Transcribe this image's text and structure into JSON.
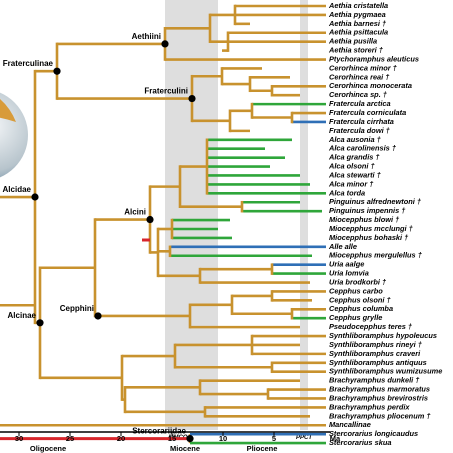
{
  "taxa": [
    "Aethia cristatella",
    "Aethia pygmaea",
    "Aethia barnesi †",
    "Aethia psittacula",
    "Aethia pusilla",
    "Aethia storeri †",
    "Ptychoramphus aleuticus",
    "Cerorhinca minor †",
    "Cerorhinca reai †",
    "Cerorhinca monocerata",
    "Cerorhinca sp. †",
    "Fratercula arctica",
    "Fratercula corniculata",
    "Fratercula cirrhata",
    "Fratercula dowi †",
    "Alca ausonia †",
    "Alca carolinensis †",
    "Alca grandis †",
    "Alca olsoni †",
    "Alca stewarti †",
    "Alca minor †",
    "Alca torda",
    "Pinguinus alfrednewtoni †",
    "Pinguinus impennis †",
    "Miocepphus blowi †",
    "Miocepphus mcclungi †",
    "Miocepphus bohaski †",
    "Alle alle",
    "Miocepphus mergulellus †",
    "Uria aalge",
    "Uria lomvia",
    "Uria brodkorbi †",
    "Cepphus carbo",
    "Cepphus olsoni †",
    "Cepphus columba",
    "Cepphus grylle",
    "Pseudocepphus teres †",
    "Synthliboramphus hypoleucus",
    "Synthliboramphus rineyi †",
    "Synthliboramphus craveri",
    "Synthliboramphus antiquus",
    "Synthliboramphus wumizusume",
    "Brachyramphus dunkeli †",
    "Brachyramphus marmoratus",
    "Brachyramphus brevirostris",
    "Brachyramphus perdix",
    "Brachyramphus pliocenum †",
    "Mancallinae",
    "Stercorarius longicaudus",
    "Stercorarius skua"
  ],
  "clades": [
    "Aethiini",
    "Fraterculinae",
    "Fraterculini",
    "Alcidae",
    "Alcini",
    "Cepphini",
    "Alcinae",
    "Stercorariidae"
  ],
  "axis": {
    "ticks": [
      30,
      25,
      20,
      15,
      10,
      5
    ],
    "unit": "Ma"
  },
  "epochs": [
    "Oligocene",
    "Miocene",
    "Pliocene"
  ],
  "events": [
    "MMCO",
    "PPCT"
  ]
}
